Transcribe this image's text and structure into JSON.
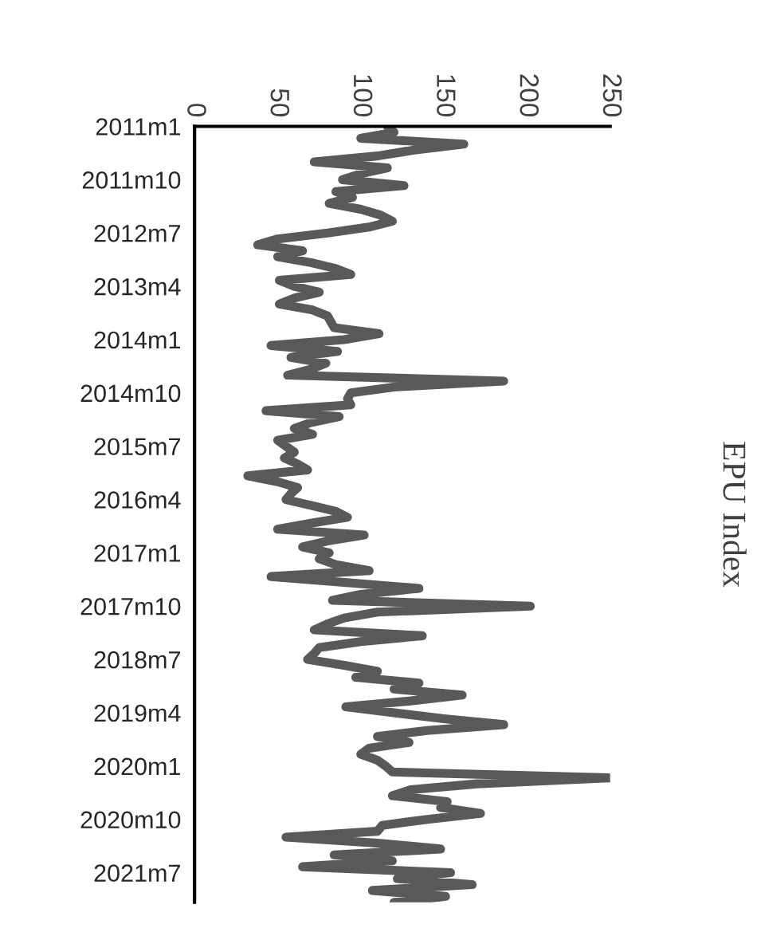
{
  "chart_data": {
    "type": "line",
    "orientation": "horizontal",
    "ylabel": "EPU Index",
    "categories": [
      "2011m1",
      null,
      null,
      null,
      null,
      null,
      null,
      null,
      null,
      "2011m10",
      null,
      null,
      null,
      null,
      null,
      null,
      null,
      null,
      "2012m7",
      null,
      null,
      null,
      null,
      null,
      null,
      null,
      null,
      "2013m4",
      null,
      null,
      null,
      null,
      null,
      null,
      null,
      null,
      "2014m1",
      null,
      null,
      null,
      null,
      null,
      null,
      null,
      null,
      "2014m10",
      null,
      null,
      null,
      null,
      null,
      null,
      null,
      null,
      "2015m7",
      null,
      null,
      null,
      null,
      null,
      null,
      null,
      null,
      "2016m4",
      null,
      null,
      null,
      null,
      null,
      null,
      null,
      null,
      "2017m1",
      null,
      null,
      null,
      null,
      null,
      null,
      null,
      null,
      "2017m10",
      null,
      null,
      null,
      null,
      null,
      null,
      null,
      null,
      "2018m7",
      null,
      null,
      null,
      null,
      null,
      null,
      null,
      null,
      "2019m4",
      null,
      null,
      null,
      null,
      null,
      null,
      null,
      null,
      "2020m1",
      null,
      null,
      null,
      null,
      null,
      null,
      null,
      null,
      "2020m10",
      null,
      null,
      null,
      null,
      null,
      null,
      null,
      null,
      "2021m7",
      null,
      null,
      null,
      null,
      null
    ],
    "series": [
      {
        "color": "#595959",
        "values": [
          116,
          120,
          100,
          162,
          132,
          110,
          72,
          116,
          100,
          89,
          126,
          85,
          95,
          81,
          100,
          112,
          119,
          105,
          80,
          50,
          38,
          65,
          50,
          70,
          85,
          94,
          51,
          60,
          75,
          60,
          51,
          71,
          80,
          82,
          84,
          111,
          90,
          46,
          86,
          58,
          79,
          70,
          56,
          186,
          120,
          94,
          92,
          94,
          43,
          87,
          70,
          60,
          71,
          50,
          55,
          60,
          54,
          62,
          68,
          32,
          50,
          62,
          58,
          55,
          70,
          85,
          92,
          70,
          50,
          102,
          80,
          65,
          81,
          75,
          85,
          105,
          46,
          90,
          135,
          100,
          83,
          202,
          110,
          90,
          80,
          72,
          137,
          100,
          75,
          72,
          68,
          90,
          110,
          97,
          135,
          120,
          161,
          130,
          91,
          120,
          150,
          186,
          140,
          110,
          129,
          105,
          100,
          110,
          115,
          119,
          250,
          170,
          130,
          119,
          152,
          148,
          172,
          140,
          113,
          110,
          55,
          110,
          148,
          84,
          119,
          65,
          154,
          122,
          167,
          107,
          151,
          120
        ]
      }
    ],
    "xlim": [
      0,
      250
    ],
    "xticks": [
      0,
      50,
      100,
      150,
      200,
      250
    ],
    "grid": false,
    "legend": false
  }
}
